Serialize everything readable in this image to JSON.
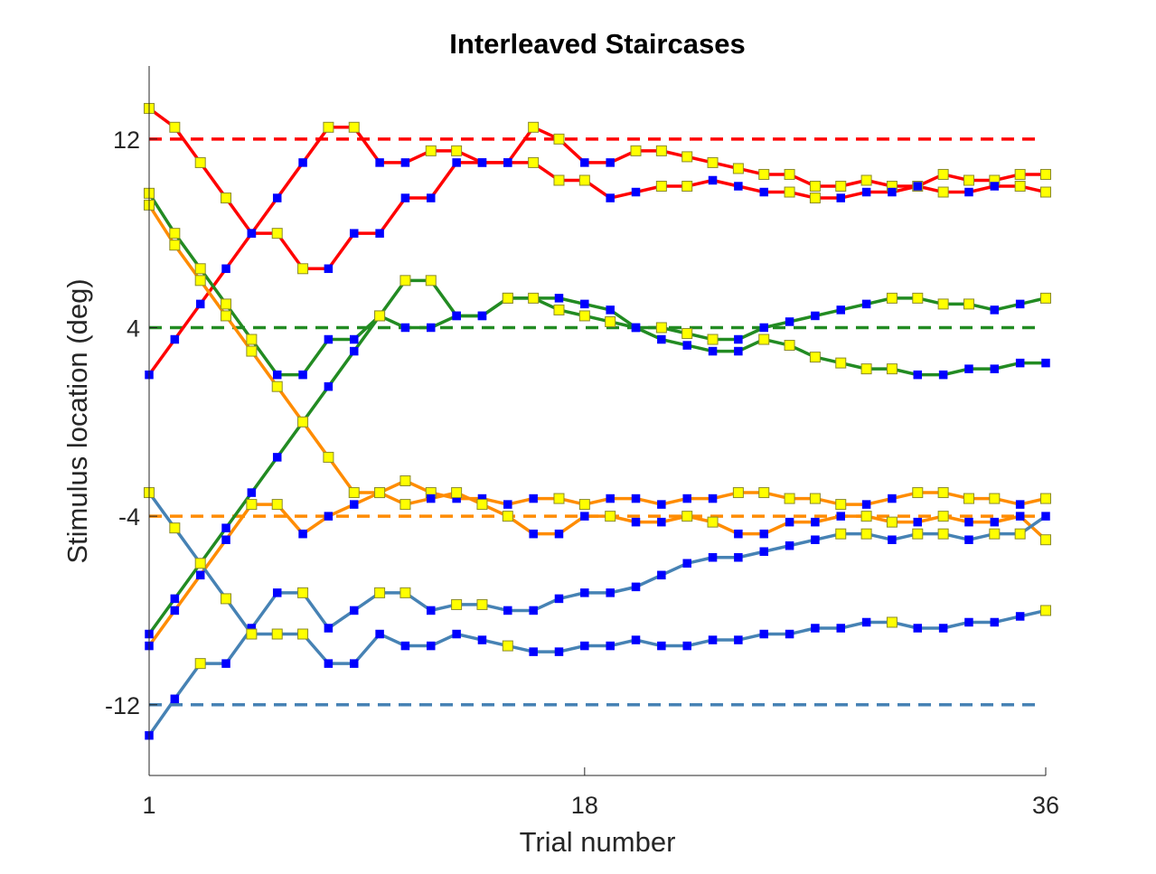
{
  "chart_data": {
    "type": "line",
    "title": "Interleaved Staircases",
    "xlabel": "Trial number",
    "ylabel": "Stimulus location (deg)",
    "xlim": [
      1,
      36
    ],
    "ylim": [
      -15,
      15.1
    ],
    "xticks": [
      1,
      18,
      36
    ],
    "yticks": [
      -12,
      -4,
      4,
      12
    ],
    "grid": false,
    "legend": "none",
    "target_lines": [
      {
        "y": 12,
        "color": "#ff0000"
      },
      {
        "y": 4,
        "color": "#228b22"
      },
      {
        "y": -4,
        "color": "#ff8c00"
      },
      {
        "y": -12,
        "color": "#4682b4"
      }
    ],
    "marker_colors": {
      "blue": "#0000ff",
      "yellow": "#ffff00"
    },
    "series": [
      {
        "color": "#ff0000",
        "values": [
          2.0,
          3.5,
          5.0,
          6.5,
          8.0,
          9.5,
          11.0,
          12.5,
          12.5,
          11.0,
          11.0,
          11.5,
          11.5,
          11.0,
          11.0,
          12.5,
          12.0,
          11.0,
          11.0,
          11.5,
          11.5,
          11.25,
          11.0,
          10.75,
          10.5,
          10.5,
          10.0,
          10.0,
          10.25,
          10.0,
          10.0,
          10.5,
          10.25,
          10.25,
          10.5,
          10.5
        ],
        "markers": [
          "b",
          "b",
          "b",
          "b",
          "b",
          "b",
          "b",
          "y",
          "y",
          "b",
          "b",
          "y",
          "y",
          "b",
          "b",
          "y",
          "y",
          "b",
          "b",
          "y",
          "y",
          "y",
          "y",
          "y",
          "y",
          "y",
          "y",
          "y",
          "y",
          "y",
          "y",
          "y",
          "y",
          "y",
          "y",
          "y"
        ]
      },
      {
        "color": "#ff0000",
        "values": [
          13.3,
          12.5,
          11.0,
          9.5,
          8.0,
          8.0,
          6.5,
          6.5,
          8.0,
          8.0,
          9.5,
          9.5,
          11.0,
          11.0,
          11.0,
          11.0,
          10.25,
          10.25,
          9.5,
          9.75,
          10.0,
          10.0,
          10.25,
          10.0,
          9.75,
          9.75,
          9.5,
          9.5,
          9.75,
          9.75,
          10.0,
          9.75,
          9.75,
          10.0,
          10.0,
          9.75
        ],
        "markers": [
          "y",
          "y",
          "y",
          "y",
          "b",
          "y",
          "y",
          "b",
          "b",
          "b",
          "b",
          "b",
          "b",
          "b",
          "b",
          "y",
          "y",
          "y",
          "b",
          "b",
          "y",
          "y",
          "b",
          "b",
          "b",
          "y",
          "y",
          "b",
          "b",
          "b",
          "b",
          "y",
          "b",
          "b",
          "y",
          "y"
        ]
      },
      {
        "color": "#228b22",
        "values": [
          -9.0,
          -7.5,
          -6.0,
          -4.5,
          -3.0,
          -1.5,
          0.0,
          1.5,
          3.0,
          4.5,
          6.0,
          6.0,
          4.5,
          4.5,
          5.25,
          5.25,
          5.25,
          5.0,
          4.75,
          4.0,
          3.5,
          3.25,
          3.0,
          3.0,
          3.5,
          3.25,
          2.75,
          2.5,
          2.25,
          2.25,
          2.0,
          2.0,
          2.25,
          2.25,
          2.5,
          2.5
        ],
        "markers": [
          "b",
          "b",
          "b",
          "b",
          "b",
          "b",
          "b",
          "b",
          "b",
          "y",
          "y",
          "y",
          "b",
          "b",
          "y",
          "b",
          "b",
          "b",
          "b",
          "b",
          "b",
          "b",
          "b",
          "b",
          "y",
          "y",
          "y",
          "y",
          "y",
          "y",
          "b",
          "b",
          "b",
          "b",
          "b",
          "b"
        ]
      },
      {
        "color": "#228b22",
        "values": [
          9.7,
          8.0,
          6.5,
          5.0,
          3.5,
          2.0,
          2.0,
          3.5,
          3.5,
          4.5,
          4.0,
          4.0,
          4.5,
          4.5,
          5.25,
          5.25,
          4.75,
          4.5,
          4.25,
          4.0,
          4.0,
          3.75,
          3.5,
          3.5,
          4.0,
          4.25,
          4.5,
          4.75,
          5.0,
          5.25,
          5.25,
          5.0,
          5.0,
          4.75,
          5.0,
          5.25
        ],
        "markers": [
          "y",
          "y",
          "y",
          "y",
          "y",
          "b",
          "b",
          "b",
          "b",
          "y",
          "b",
          "b",
          "b",
          "b",
          "y",
          "y",
          "y",
          "y",
          "y",
          "b",
          "y",
          "y",
          "y",
          "b",
          "b",
          "b",
          "b",
          "b",
          "b",
          "y",
          "y",
          "y",
          "y",
          "b",
          "b",
          "y"
        ]
      },
      {
        "color": "#ff8c00",
        "values": [
          -9.5,
          -8.0,
          -6.5,
          -5.0,
          -3.5,
          -3.5,
          -4.75,
          -4.0,
          -3.5,
          -3.0,
          -2.5,
          -3.0,
          -3.25,
          -3.25,
          -3.5,
          -3.25,
          -3.25,
          -3.5,
          -3.25,
          -3.25,
          -3.5,
          -3.25,
          -3.25,
          -3.0,
          -3.0,
          -3.25,
          -3.25,
          -3.5,
          -3.5,
          -3.25,
          -3.0,
          -3.0,
          -3.25,
          -3.25,
          -3.5,
          -3.25
        ],
        "markers": [
          "b",
          "b",
          "b",
          "b",
          "y",
          "y",
          "b",
          "b",
          "b",
          "y",
          "y",
          "y",
          "b",
          "b",
          "b",
          "b",
          "y",
          "y",
          "b",
          "b",
          "b",
          "b",
          "b",
          "y",
          "y",
          "y",
          "y",
          "y",
          "b",
          "b",
          "y",
          "y",
          "y",
          "y",
          "b",
          "y"
        ]
      },
      {
        "color": "#ff8c00",
        "values": [
          9.2,
          7.5,
          6.0,
          4.5,
          3.0,
          1.5,
          0.0,
          -1.5,
          -3.0,
          -3.0,
          -3.5,
          -3.25,
          -3.0,
          -3.5,
          -4.0,
          -4.75,
          -4.75,
          -4.0,
          -4.0,
          -4.25,
          -4.25,
          -4.0,
          -4.25,
          -4.75,
          -4.75,
          -4.25,
          -4.25,
          -4.0,
          -4.0,
          -4.25,
          -4.25,
          -4.0,
          -4.25,
          -4.25,
          -4.0,
          -5.0
        ],
        "markers": [
          "y",
          "y",
          "y",
          "y",
          "y",
          "y",
          "y",
          "y",
          "y",
          "y",
          "y",
          "b",
          "y",
          "y",
          "y",
          "b",
          "b",
          "b",
          "y",
          "b",
          "b",
          "y",
          "y",
          "b",
          "b",
          "b",
          "b",
          "b",
          "y",
          "y",
          "b",
          "y",
          "b",
          "b",
          "b",
          "y"
        ]
      },
      {
        "color": "#4682b4",
        "values": [
          -13.3,
          -11.75,
          -10.25,
          -10.25,
          -8.75,
          -7.25,
          -7.25,
          -8.75,
          -8.0,
          -7.25,
          -7.25,
          -8.0,
          -7.75,
          -7.75,
          -8.0,
          -8.0,
          -7.5,
          -7.25,
          -7.25,
          -7.0,
          -6.5,
          -6.0,
          -5.75,
          -5.75,
          -5.5,
          -5.25,
          -5.0,
          -4.75,
          -4.75,
          -5.0,
          -4.75,
          -4.75,
          -5.0,
          -4.75,
          -4.75,
          -4.0
        ],
        "markers": [
          "b",
          "b",
          "y",
          "b",
          "b",
          "b",
          "y",
          "b",
          "b",
          "y",
          "y",
          "b",
          "y",
          "y",
          "b",
          "b",
          "b",
          "b",
          "b",
          "b",
          "b",
          "b",
          "b",
          "b",
          "b",
          "b",
          "b",
          "y",
          "y",
          "b",
          "y",
          "y",
          "b",
          "y",
          "y",
          "b"
        ]
      },
      {
        "color": "#4682b4",
        "values": [
          -3.0,
          -4.5,
          -6.0,
          -7.5,
          -9.0,
          -9.0,
          -9.0,
          -10.25,
          -10.25,
          -9.0,
          -9.5,
          -9.5,
          -9.0,
          -9.25,
          -9.5,
          -9.75,
          -9.75,
          -9.5,
          -9.5,
          -9.25,
          -9.5,
          -9.5,
          -9.25,
          -9.25,
          -9.0,
          -9.0,
          -8.75,
          -8.75,
          -8.5,
          -8.5,
          -8.75,
          -8.75,
          -8.5,
          -8.5,
          -8.25,
          -8.0
        ],
        "markers": [
          "y",
          "y",
          "y",
          "y",
          "y",
          "y",
          "y",
          "b",
          "b",
          "b",
          "b",
          "b",
          "b",
          "b",
          "y",
          "b",
          "b",
          "b",
          "b",
          "b",
          "b",
          "b",
          "b",
          "b",
          "b",
          "b",
          "b",
          "b",
          "b",
          "y",
          "b",
          "b",
          "b",
          "b",
          "b",
          "y"
        ]
      }
    ]
  }
}
